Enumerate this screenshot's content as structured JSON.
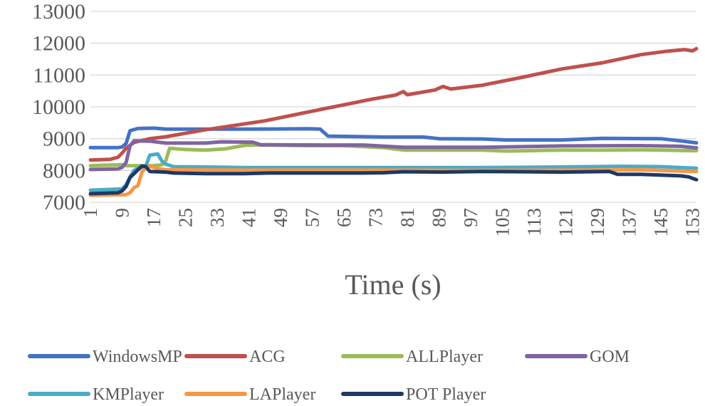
{
  "chart_data": {
    "type": "line",
    "title": "",
    "xlabel": "Time (s)",
    "ylabel": "",
    "ylim": [
      7000,
      13000
    ],
    "yticks": [
      "7000",
      "8000",
      "9000",
      "10000",
      "11000",
      "12000",
      "13000"
    ],
    "xlim": [
      1,
      154
    ],
    "xticks": [
      "1",
      "9",
      "17",
      "25",
      "33",
      "41",
      "49",
      "57",
      "65",
      "73",
      "81",
      "89",
      "97",
      "105",
      "113",
      "121",
      "129",
      "137",
      "145",
      "153"
    ],
    "grid": true,
    "legend_position": "bottom",
    "series": [
      {
        "name": "WindowsMP",
        "color": "#4472c4",
        "points": [
          [
            1,
            8720
          ],
          [
            8,
            8720
          ],
          [
            9,
            8740
          ],
          [
            10,
            8850
          ],
          [
            11,
            9250
          ],
          [
            13,
            9320
          ],
          [
            17,
            9330
          ],
          [
            20,
            9300
          ],
          [
            40,
            9300
          ],
          [
            56,
            9310
          ],
          [
            59,
            9300
          ],
          [
            61,
            9080
          ],
          [
            75,
            9050
          ],
          [
            85,
            9050
          ],
          [
            89,
            9000
          ],
          [
            100,
            8990
          ],
          [
            106,
            8960
          ],
          [
            120,
            8960
          ],
          [
            130,
            9010
          ],
          [
            145,
            9000
          ],
          [
            150,
            8930
          ],
          [
            154,
            8870
          ]
        ]
      },
      {
        "name": "ACG",
        "color": "#c0504d",
        "points": [
          [
            1,
            8330
          ],
          [
            6,
            8350
          ],
          [
            8,
            8420
          ],
          [
            9,
            8550
          ],
          [
            10,
            8700
          ],
          [
            12,
            8880
          ],
          [
            16,
            9000
          ],
          [
            20,
            9060
          ],
          [
            30,
            9280
          ],
          [
            45,
            9560
          ],
          [
            60,
            9940
          ],
          [
            72,
            10240
          ],
          [
            78,
            10370
          ],
          [
            80,
            10480
          ],
          [
            81,
            10380
          ],
          [
            88,
            10530
          ],
          [
            90,
            10640
          ],
          [
            92,
            10560
          ],
          [
            100,
            10680
          ],
          [
            110,
            10930
          ],
          [
            120,
            11190
          ],
          [
            130,
            11380
          ],
          [
            140,
            11640
          ],
          [
            146,
            11740
          ],
          [
            151,
            11800
          ],
          [
            153,
            11760
          ],
          [
            154,
            11830
          ]
        ]
      },
      {
        "name": "ALLPlayer",
        "color": "#9bbb59",
        "points": [
          [
            1,
            8150
          ],
          [
            9,
            8180
          ],
          [
            10,
            8150
          ],
          [
            17,
            8150
          ],
          [
            19,
            8180
          ],
          [
            20,
            8300
          ],
          [
            21,
            8700
          ],
          [
            25,
            8660
          ],
          [
            30,
            8640
          ],
          [
            35,
            8680
          ],
          [
            40,
            8790
          ],
          [
            45,
            8800
          ],
          [
            55,
            8780
          ],
          [
            65,
            8780
          ],
          [
            75,
            8720
          ],
          [
            80,
            8640
          ],
          [
            90,
            8640
          ],
          [
            100,
            8640
          ],
          [
            106,
            8610
          ],
          [
            120,
            8640
          ],
          [
            130,
            8640
          ],
          [
            140,
            8650
          ],
          [
            154,
            8620
          ]
        ]
      },
      {
        "name": "GOM",
        "color": "#8064a2",
        "points": [
          [
            1,
            8030
          ],
          [
            8,
            8050
          ],
          [
            9,
            8100
          ],
          [
            10,
            8250
          ],
          [
            11,
            8780
          ],
          [
            12,
            8930
          ],
          [
            16,
            8920
          ],
          [
            20,
            8860
          ],
          [
            30,
            8860
          ],
          [
            34,
            8900
          ],
          [
            42,
            8890
          ],
          [
            44,
            8810
          ],
          [
            60,
            8800
          ],
          [
            70,
            8800
          ],
          [
            80,
            8730
          ],
          [
            100,
            8730
          ],
          [
            120,
            8770
          ],
          [
            140,
            8780
          ],
          [
            150,
            8760
          ],
          [
            154,
            8710
          ]
        ]
      },
      {
        "name": "KMPlayer",
        "color": "#4bacc6",
        "points": [
          [
            1,
            7380
          ],
          [
            9,
            7420
          ],
          [
            10,
            7550
          ],
          [
            11,
            7800
          ],
          [
            12,
            8000
          ],
          [
            13,
            8080
          ],
          [
            14,
            8100
          ],
          [
            15,
            8150
          ],
          [
            16,
            8480
          ],
          [
            18,
            8520
          ],
          [
            19,
            8300
          ],
          [
            20,
            8200
          ],
          [
            22,
            8120
          ],
          [
            30,
            8110
          ],
          [
            40,
            8090
          ],
          [
            60,
            8090
          ],
          [
            80,
            8090
          ],
          [
            100,
            8090
          ],
          [
            120,
            8110
          ],
          [
            135,
            8130
          ],
          [
            145,
            8120
          ],
          [
            154,
            8070
          ]
        ]
      },
      {
        "name": "LAPlayer",
        "color": "#f79646",
        "points": [
          [
            1,
            7220
          ],
          [
            10,
            7240
          ],
          [
            11,
            7300
          ],
          [
            12,
            7460
          ],
          [
            13,
            7520
          ],
          [
            14,
            7950
          ],
          [
            15,
            8100
          ],
          [
            16,
            8130
          ],
          [
            18,
            8060
          ],
          [
            20,
            8020
          ],
          [
            40,
            8010
          ],
          [
            60,
            8010
          ],
          [
            80,
            8010
          ],
          [
            100,
            8000
          ],
          [
            120,
            8010
          ],
          [
            140,
            8020
          ],
          [
            154,
            7970
          ]
        ]
      },
      {
        "name": "POT Player",
        "color": "#1f3864",
        "points": [
          [
            1,
            7270
          ],
          [
            8,
            7300
          ],
          [
            9,
            7360
          ],
          [
            10,
            7500
          ],
          [
            11,
            7780
          ],
          [
            12,
            7900
          ],
          [
            13,
            8020
          ],
          [
            14,
            8140
          ],
          [
            15,
            8120
          ],
          [
            16,
            7970
          ],
          [
            20,
            7950
          ],
          [
            22,
            7920
          ],
          [
            30,
            7900
          ],
          [
            40,
            7900
          ],
          [
            46,
            7920
          ],
          [
            60,
            7920
          ],
          [
            70,
            7920
          ],
          [
            75,
            7930
          ],
          [
            80,
            7960
          ],
          [
            90,
            7950
          ],
          [
            100,
            7970
          ],
          [
            110,
            7960
          ],
          [
            120,
            7950
          ],
          [
            132,
            7970
          ],
          [
            134,
            7880
          ],
          [
            140,
            7880
          ],
          [
            150,
            7830
          ],
          [
            152,
            7800
          ],
          [
            154,
            7710
          ]
        ]
      }
    ]
  }
}
